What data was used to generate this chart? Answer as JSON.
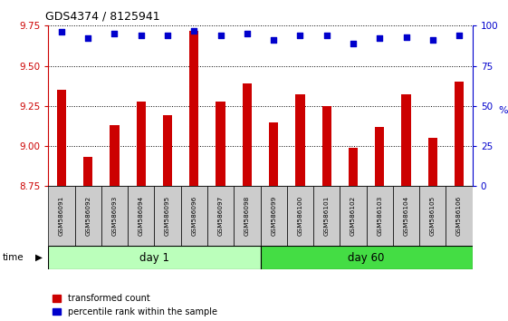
{
  "title": "GDS4374 / 8125941",
  "samples": [
    "GSM586091",
    "GSM586092",
    "GSM586093",
    "GSM586094",
    "GSM586095",
    "GSM586096",
    "GSM586097",
    "GSM586098",
    "GSM586099",
    "GSM586100",
    "GSM586101",
    "GSM586102",
    "GSM586103",
    "GSM586104",
    "GSM586105",
    "GSM586106"
  ],
  "bar_values": [
    9.35,
    8.93,
    9.13,
    9.28,
    9.19,
    9.72,
    9.28,
    9.39,
    9.15,
    9.32,
    9.25,
    8.99,
    9.12,
    9.32,
    9.05,
    9.4
  ],
  "dot_values": [
    96,
    92,
    95,
    94,
    94,
    97,
    94,
    95,
    91,
    94,
    94,
    89,
    92,
    93,
    91,
    94
  ],
  "bar_color": "#cc0000",
  "dot_color": "#0000cc",
  "ylim_left": [
    8.75,
    9.75
  ],
  "ylim_right": [
    0,
    100
  ],
  "yticks_left": [
    8.75,
    9.0,
    9.25,
    9.5,
    9.75
  ],
  "yticks_right": [
    0,
    25,
    50,
    75,
    100
  ],
  "day1_label": "day 1",
  "day60_label": "day 60",
  "time_label": "time",
  "legend_bar": "transformed count",
  "legend_dot": "percentile rank within the sample",
  "day1_color": "#bbffbb",
  "day60_color": "#44dd44",
  "bar_bottom": 8.75,
  "right_ylabel": "%",
  "grid_color": "#000000",
  "label_bg": "#cccccc"
}
